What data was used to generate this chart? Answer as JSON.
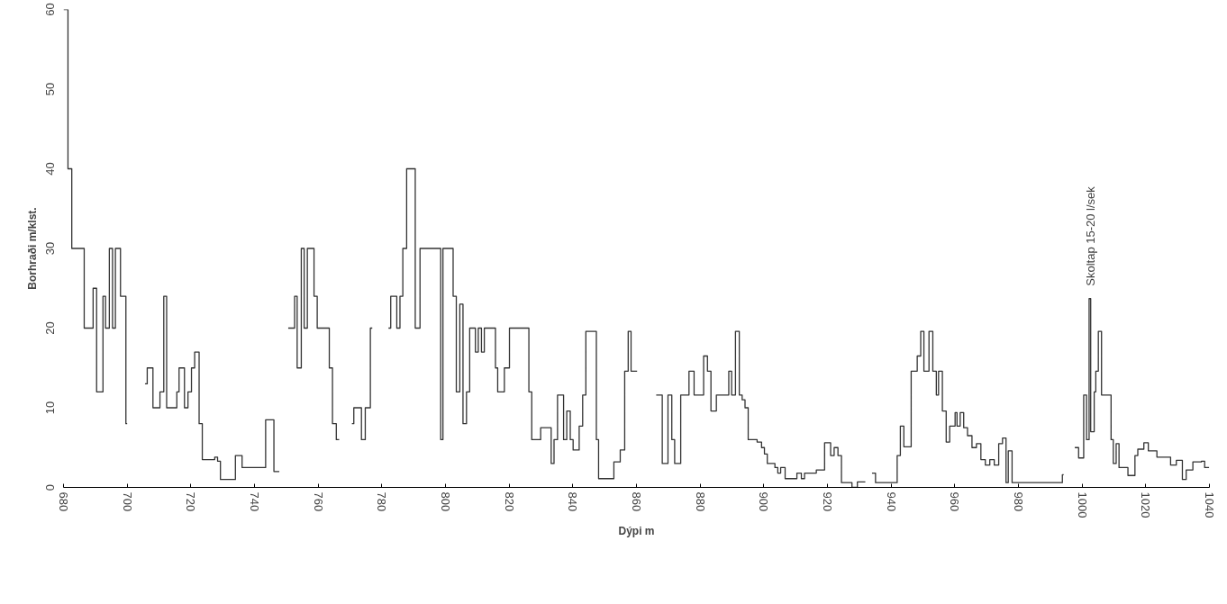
{
  "chart_data": [
    {
      "type": "step",
      "ylabel": "Borhraði m/klst.",
      "xlabel": "Dýpi m",
      "xlim": [
        680,
        1040
      ],
      "ylim": [
        0,
        60
      ],
      "xticks": [
        680,
        700,
        720,
        740,
        760,
        780,
        800,
        820,
        840,
        860,
        880,
        900,
        920,
        940,
        960,
        980,
        1000,
        1020,
        1040
      ],
      "yticks": [
        0,
        10,
        20,
        30,
        40,
        50,
        60
      ],
      "grid": false,
      "annotations": [
        {
          "text": "Skoltap 15-20 l/sek",
          "x": 1002.5,
          "y": 23.7
        }
      ],
      "series": [
        {
          "color": "#333333",
          "x": [
            680,
            681.4,
            682.6,
            686.5,
            689.3,
            690.4,
            692.4,
            693.2,
            694.4,
            695.4,
            696.3,
            697.9,
            699.6,
            700.0,
            705.6,
            706.3,
            708.1,
            710.3,
            711.5,
            712.4,
            715.6,
            716.3,
            718.0,
            719.1,
            720.2,
            721.2,
            722.6,
            723.6,
            727.5,
            728.4,
            729.3,
            734.0,
            736.1,
            743.5,
            746.1,
            747.8,
            750.6,
            752.6,
            753.4,
            754.7,
            755.6,
            756.6,
            758.7,
            759.7,
            763.5,
            764.5,
            765.7,
            766.6,
            770.6,
            771.2,
            773.6,
            774.8,
            776.4,
            777.0,
            782.1,
            782.8,
            784.7,
            785.7,
            786.6,
            787.8,
            790.5,
            792.0,
            798.5,
            799.2,
            802.4,
            803.4,
            804.5,
            805.5,
            806.6,
            807.6,
            809.4,
            810.3,
            811.3,
            812.2,
            815.7,
            816.4,
            818.5,
            820.1,
            826.2,
            827.1,
            829.9,
            833.2,
            834.1,
            835.2,
            837.1,
            838.1,
            839.2,
            840.1,
            842.0,
            843.1,
            844.1,
            847.4,
            848.1,
            852.9,
            854.9,
            856.3,
            857.4,
            858.3,
            860.2,
            866.2,
            868.1,
            869.9,
            871.1,
            872.0,
            873.9,
            876.5,
            878.1,
            881.1,
            882.3,
            883.4,
            885.1,
            889.0,
            889.9,
            891.1,
            892.3,
            893.2,
            894.1,
            895.1,
            897.9,
            899.3,
            900.2,
            901.1,
            903.5,
            904.4,
            905.3,
            906.7,
            910.4,
            911.8,
            912.8,
            916.5,
            919.1,
            921.0,
            922.1,
            923.3,
            924.4,
            927.7,
            929.4,
            931.9,
            934.0,
            935.1,
            941.9,
            942.9,
            944.0,
            946.3,
            948.2,
            949.3,
            950.3,
            951.9,
            953.1,
            954.2,
            954.9,
            956.1,
            957.3,
            958.4,
            960.1,
            960.7,
            961.7,
            962.8,
            964.0,
            965.4,
            966.8,
            968.2,
            969.6,
            971.0,
            972.4,
            973.8,
            975.0,
            976.1,
            976.8,
            978.0,
            978.9,
            993.8,
            994.2,
            997.7,
            998.9,
            1000.5,
            1001.4,
            1002.2,
            1002.7,
            1003.8,
            1004.3,
            1005.1,
            1006.1,
            1009.1,
            1009.8,
            1010.7,
            1011.6,
            1014.4,
            1016.6,
            1017.5,
            1019.4,
            1020.8,
            1023.5,
            1027.8,
            1029.6,
            1031.5,
            1032.7,
            1034.8,
            1037.5,
            1038.5,
            1039.9
          ],
          "values": [
            60,
            40,
            30,
            20,
            25,
            12,
            24,
            20,
            30,
            20,
            30,
            24,
            8,
            null,
            13,
            15,
            10,
            12,
            24,
            10,
            12,
            15,
            10,
            12,
            15,
            17,
            8,
            3.5,
            3.8,
            3.3,
            1,
            4,
            2.5,
            8.5,
            2,
            null,
            20,
            24,
            15,
            30,
            20,
            30,
            24,
            20,
            15,
            8,
            6,
            null,
            8,
            10,
            6,
            10,
            20,
            null,
            20,
            24,
            20,
            24,
            30,
            40,
            20,
            30,
            6,
            30,
            24,
            12,
            23,
            8,
            12,
            20,
            17,
            20,
            17,
            20,
            15,
            12,
            15,
            20,
            12,
            6,
            7.5,
            3,
            6,
            11.6,
            6,
            9.6,
            6,
            4.7,
            7.7,
            11.6,
            19.6,
            6,
            1.1,
            3.2,
            4.7,
            14.6,
            19.6,
            14.6,
            null,
            11.6,
            3,
            11.6,
            6,
            3,
            11.6,
            14.6,
            11.6,
            16.5,
            14.6,
            9.6,
            11.6,
            14.6,
            11.6,
            19.6,
            11.6,
            11,
            10,
            6,
            5.7,
            5,
            4.2,
            3,
            2.5,
            1.8,
            2.5,
            1.1,
            1.8,
            1.1,
            1.8,
            2.2,
            5.6,
            4,
            5,
            4,
            0.6,
            0,
            0.7,
            null,
            1.8,
            0.6,
            4,
            7.7,
            5.1,
            14.6,
            16.5,
            19.6,
            14.6,
            19.6,
            14.6,
            11.6,
            14.6,
            9.6,
            5.7,
            7.7,
            9.4,
            7.7,
            9.4,
            7.5,
            6.5,
            5,
            5.5,
            3.5,
            2.8,
            3.5,
            2.8,
            5.5,
            6.2,
            0.6,
            4.6,
            0.6,
            0.6,
            1.6,
            null,
            5,
            3.7,
            11.6,
            6,
            23.7,
            7,
            12,
            14.6,
            19.6,
            11.6,
            6,
            3,
            5.5,
            2.5,
            1.5,
            4,
            4.8,
            5.6,
            4.6,
            3.8,
            2.8,
            3.4,
            1,
            2.2,
            3.2,
            3.3,
            2.5,
            2.5
          ]
        }
      ]
    }
  ]
}
